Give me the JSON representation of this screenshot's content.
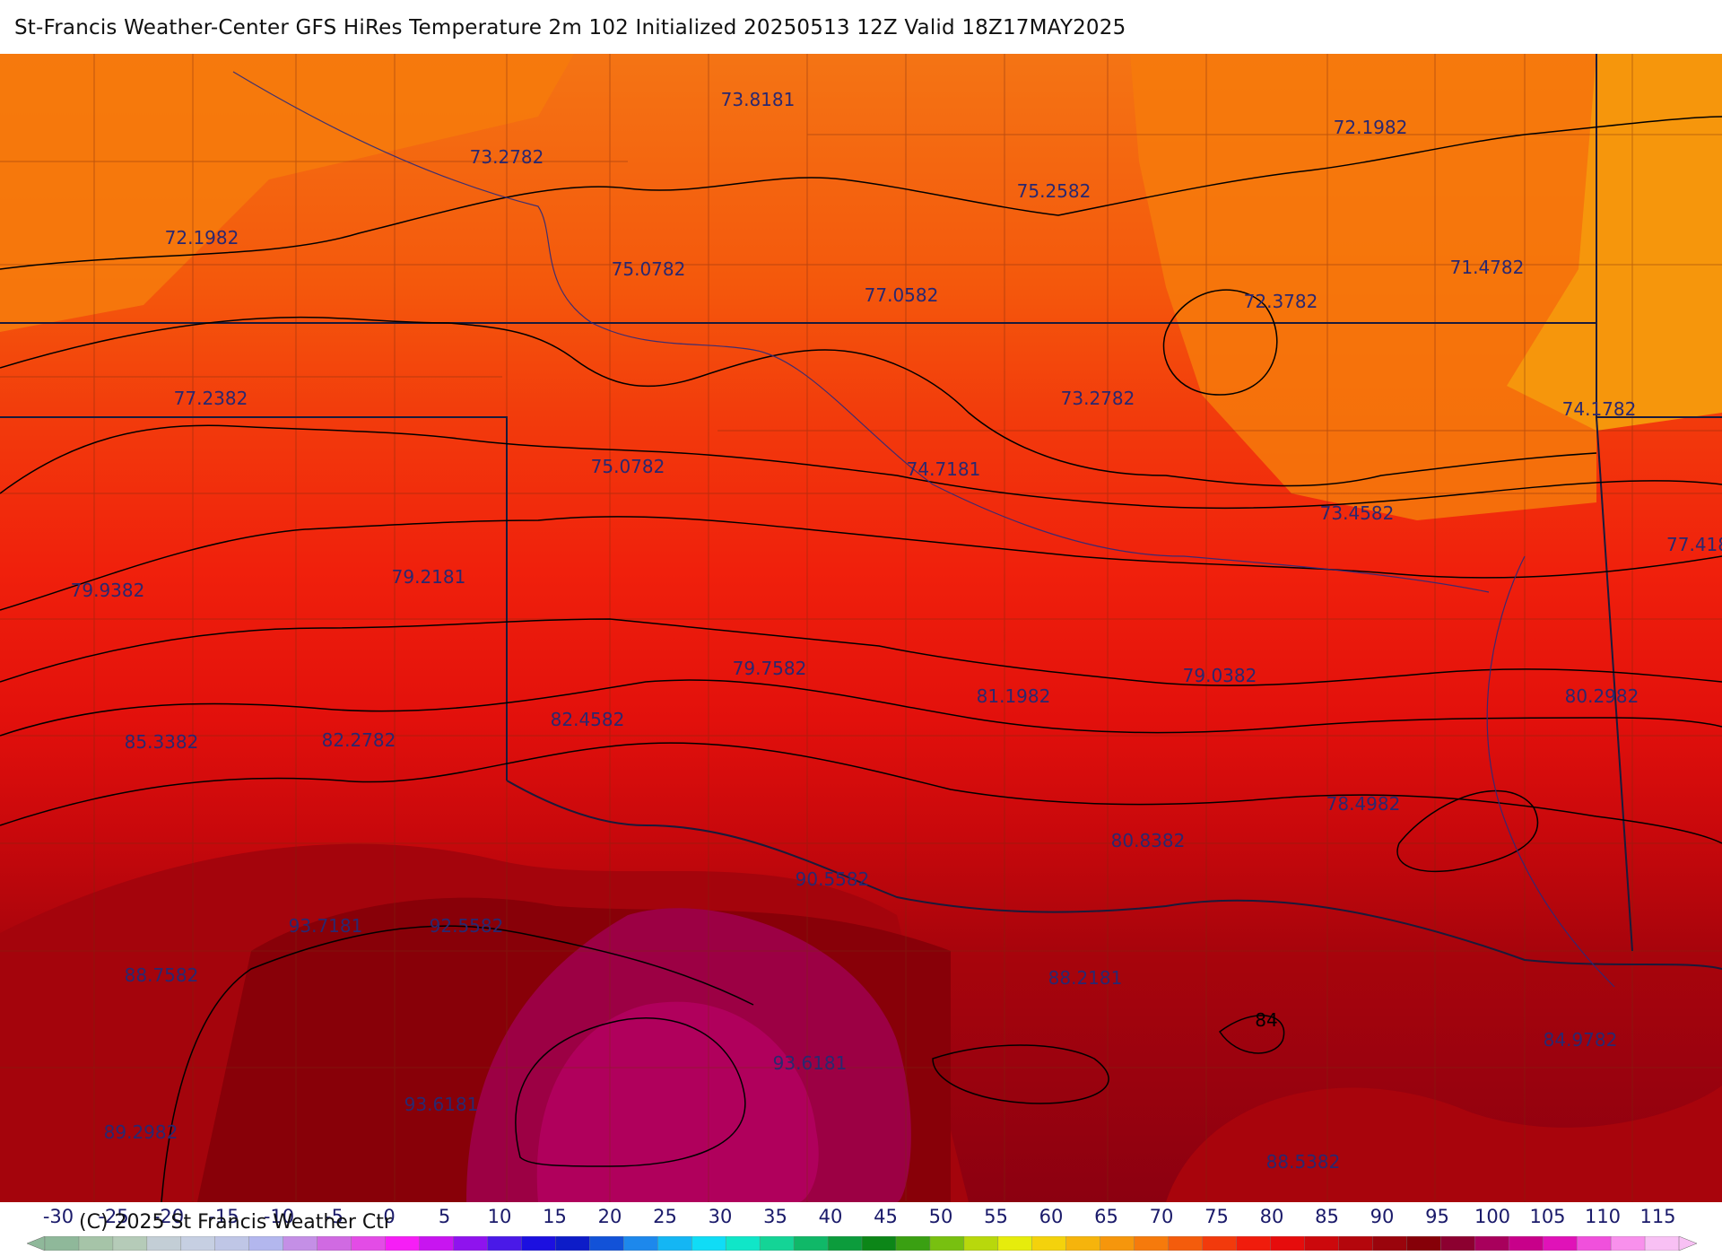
{
  "title": "St-Francis Weather-Center GFS HiRes Temperature 2m  102 Initialized 20250513 12Z Valid 18Z17MAY2025",
  "copyright": "(C) 2025 St Francis Weather Ctr",
  "contour_tag": "84",
  "value_labels": [
    {
      "text": "73.8181"
    },
    {
      "text": "73.2782"
    },
    {
      "text": "72.1982"
    },
    {
      "text": "75.0782"
    },
    {
      "text": "77.0582"
    },
    {
      "text": "75.2582"
    },
    {
      "text": "72.1982"
    },
    {
      "text": "71.4782"
    },
    {
      "text": "72.3782"
    },
    {
      "text": "77.2382"
    },
    {
      "text": "73.2782"
    },
    {
      "text": "74.1782"
    },
    {
      "text": "75.0782"
    },
    {
      "text": "74.7181"
    },
    {
      "text": "73.4582"
    },
    {
      "text": "77.418"
    },
    {
      "text": "79.9382"
    },
    {
      "text": "79.2181"
    },
    {
      "text": "79.7582"
    },
    {
      "text": "81.1982"
    },
    {
      "text": "79.0382"
    },
    {
      "text": "80.2982"
    },
    {
      "text": "85.3382"
    },
    {
      "text": "82.2782"
    },
    {
      "text": "82.4582"
    },
    {
      "text": "78.4982"
    },
    {
      "text": "80.8382"
    },
    {
      "text": "90.5582"
    },
    {
      "text": "93.7181"
    },
    {
      "text": "92.5582"
    },
    {
      "text": "88.7582"
    },
    {
      "text": "88.2181"
    },
    {
      "text": "84.9782"
    },
    {
      "text": "93.6181"
    },
    {
      "text": "93.6181"
    },
    {
      "text": "89.2982"
    },
    {
      "text": "88.5382"
    }
  ],
  "colorbar": {
    "tick_labels": [
      "-30",
      "-25",
      "-20",
      "-15",
      "-10",
      "-5",
      "0",
      "5",
      "10",
      "15",
      "20",
      "25",
      "30",
      "35",
      "40",
      "45",
      "50",
      "55",
      "60",
      "65",
      "70",
      "75",
      "80",
      "85",
      "90",
      "95",
      "100",
      "105",
      "110",
      "115"
    ],
    "colors": [
      "#8fb89a",
      "#a6c4a8",
      "#b5cbb8",
      "#c3ced6",
      "#c6cfe2",
      "#bfc6e6",
      "#b3b7ee",
      "#c48fe6",
      "#d06ae2",
      "#e34ce6",
      "#f61ef6",
      "#c815f0",
      "#8f13ee",
      "#4a19e8",
      "#1c10e0",
      "#0d1cc8",
      "#1252d8",
      "#1d88ec",
      "#14b6f4",
      "#10dcf6",
      "#10e6c8",
      "#14d496",
      "#10b868",
      "#0c9c3c",
      "#0c8618",
      "#3aa012",
      "#78c010",
      "#b8d80c",
      "#e6ec0c",
      "#f4d20c",
      "#f6b40c",
      "#f6960c",
      "#f67a0c",
      "#f45c0c",
      "#f23a0c",
      "#f01c0c",
      "#e60c0c",
      "#cc080c",
      "#b4060c",
      "#9a040c",
      "#860008",
      "#8c0030",
      "#a8005c",
      "#c8008a",
      "#e012b8",
      "#f050dc",
      "#f890ec",
      "#f8c0f4"
    ]
  }
}
